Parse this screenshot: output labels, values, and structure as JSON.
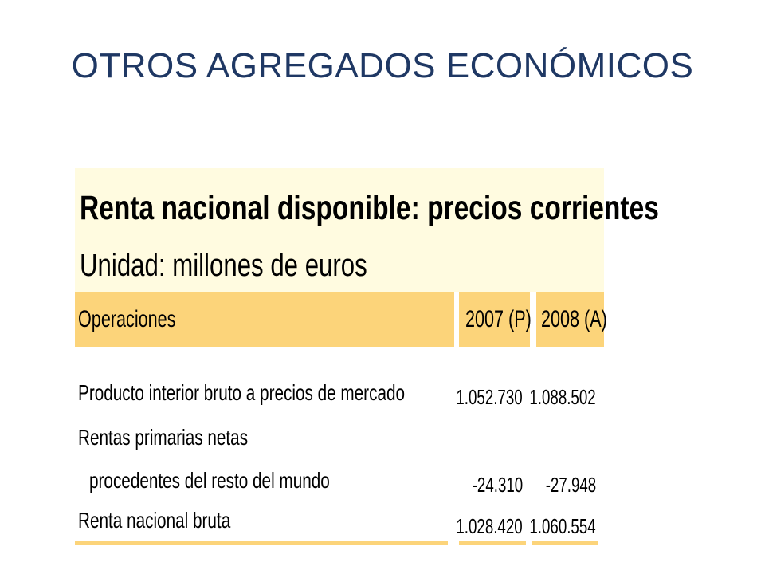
{
  "slide": {
    "title": "OTROS AGREGADOS ECONÓMICOS"
  },
  "table": {
    "title": "Renta nacional disponible: precios corrientes",
    "unit": "Unidad: millones de euros",
    "columns": {
      "operations": "Operaciones",
      "year1": "2007 (P)",
      "year2": "2008 (A)"
    },
    "rows": [
      {
        "label": "Producto interior bruto a precios de mercado",
        "v1": "1.052.730",
        "v2": "1.088.502"
      },
      {
        "label": "Rentas primarias netas",
        "v1": "",
        "v2": ""
      },
      {
        "label": "procedentes del resto del mundo",
        "v1": "-24.310",
        "v2": "-27.948"
      },
      {
        "label": "Renta nacional bruta",
        "v1": "1.028.420",
        "v2": "1.060.554"
      }
    ]
  },
  "colors": {
    "title": "#1f3864",
    "header_bg": "#fffbe0",
    "column_header_bg": "#fcd47a"
  }
}
